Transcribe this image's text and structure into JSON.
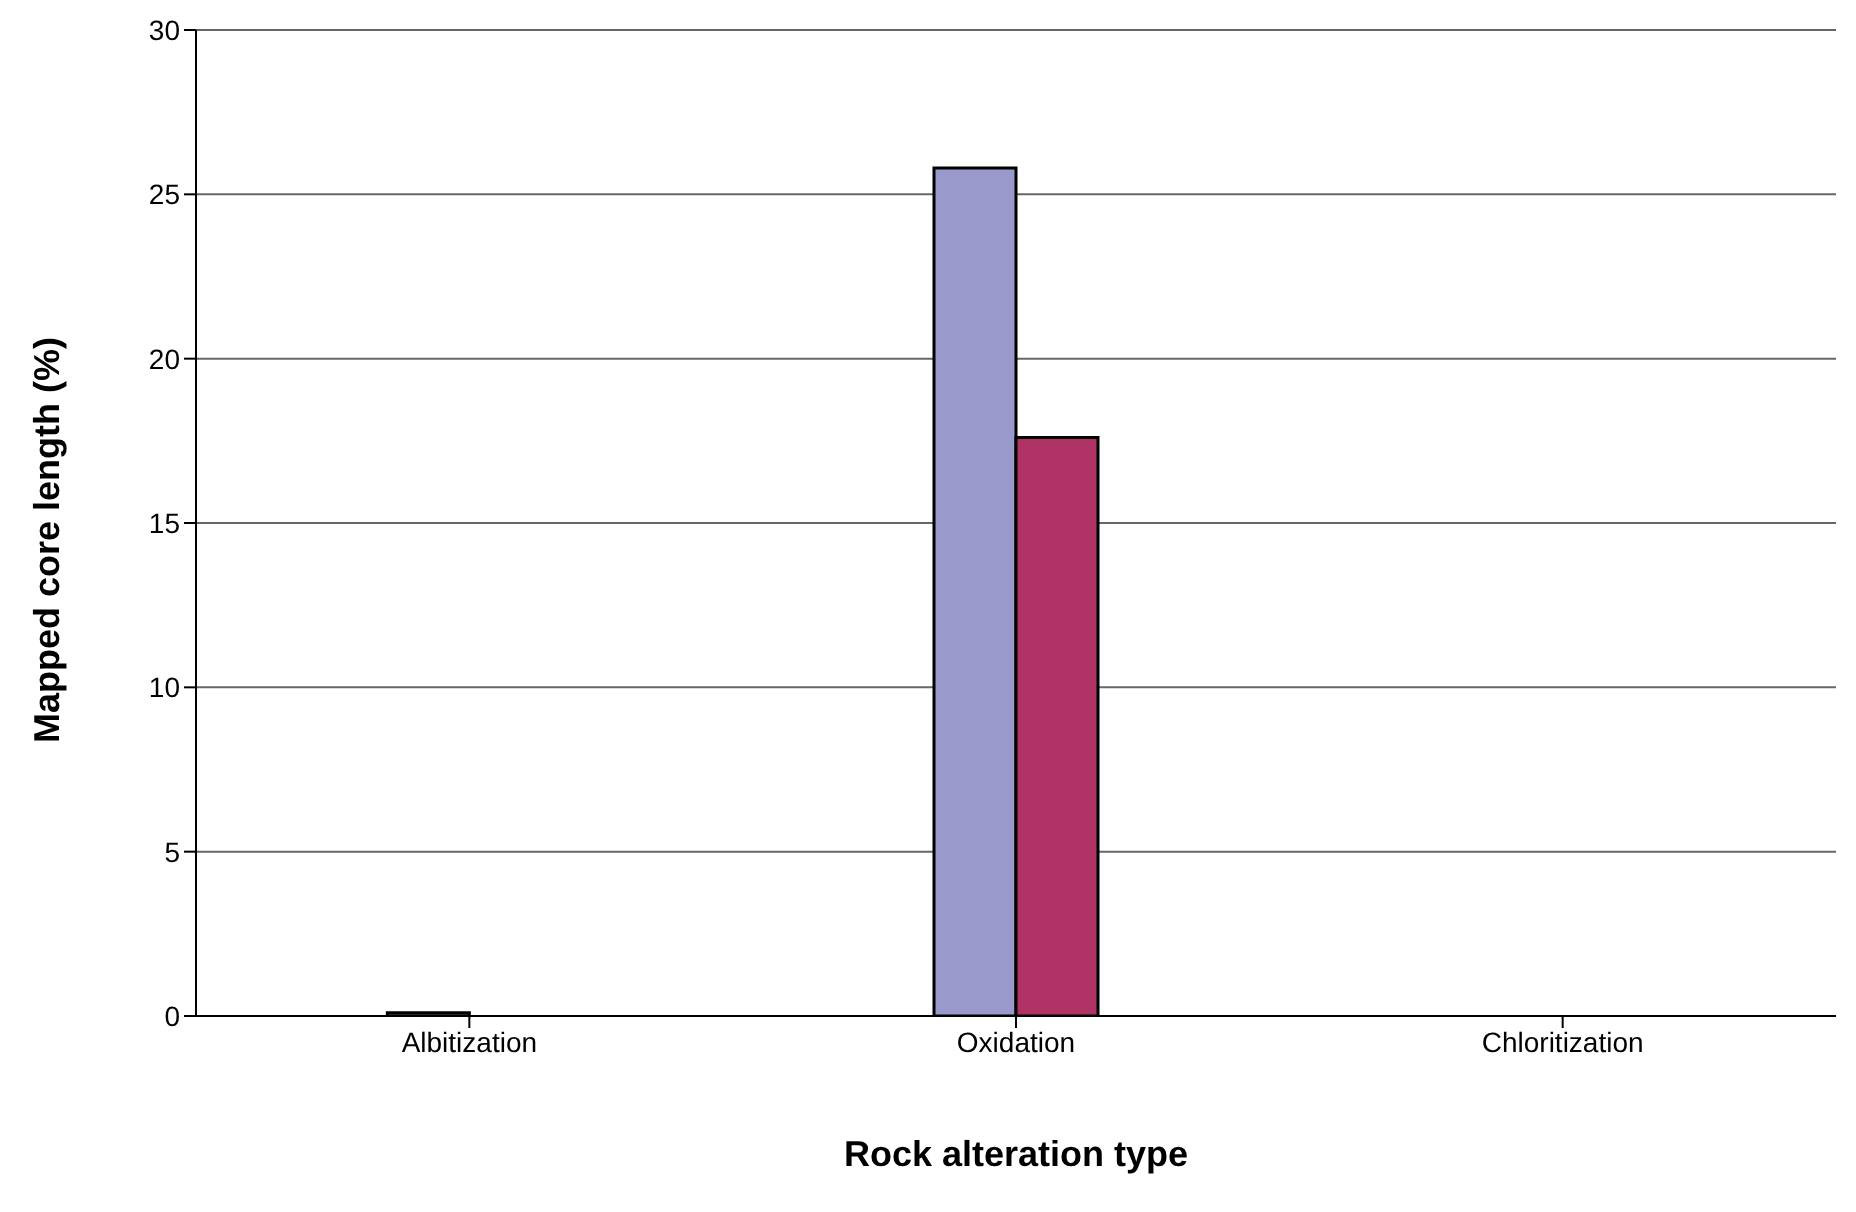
{
  "chart_data": {
    "type": "bar",
    "xlabel": "Rock alteration type",
    "ylabel": "Mapped core length (%)",
    "categories": [
      "Albitization",
      "Oxidation",
      "Chloritization"
    ],
    "series": [
      {
        "color": "#9999cc",
        "values": [
          0.1,
          25.8,
          0
        ]
      },
      {
        "color": "#b03366",
        "values": [
          0,
          17.6,
          0
        ]
      }
    ],
    "ylim": [
      0,
      30
    ],
    "yticks": [
      0,
      5,
      10,
      15,
      20,
      25,
      30
    ],
    "grid": "y",
    "legend": false
  }
}
